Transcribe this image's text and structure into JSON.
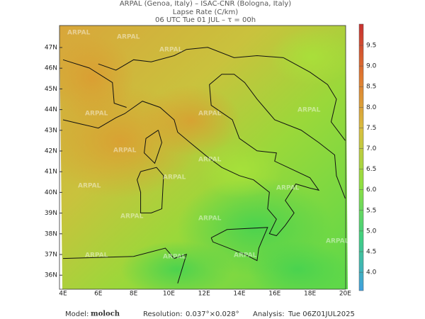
{
  "header": {
    "line1": "ARPAL (Genoa, Italy)  –  ISAC-CNR (Bologna, Italy)",
    "line2": "Lapse Rate (C/km)",
    "line3": "06 UTC Tue 01 JUL  –  τ = 00h"
  },
  "map": {
    "lat_labels": [
      "47N",
      "46N",
      "45N",
      "44N",
      "43N",
      "42N",
      "41N",
      "40N",
      "39N",
      "38N",
      "37N",
      "36N"
    ],
    "lon_labels": [
      "4E",
      "6E",
      "8E",
      "10E",
      "12E",
      "14E",
      "16E",
      "18E",
      "20E"
    ],
    "watermark": "ARPAL"
  },
  "colorbar": {
    "labels": [
      "9.5",
      "9.0",
      "8.5",
      "8.0",
      "7.5",
      "7.0",
      "6.5",
      "6.0",
      "5.5",
      "5.0",
      "4.5",
      "4.0"
    ]
  },
  "footer": {
    "model_label": "Model:",
    "model": "moloch",
    "resolution_label": "Resolution:",
    "resolution": "0.037°×0.028°",
    "analysis_label": "Analysis:",
    "analysis": "Tue 06Z01JUL2025"
  }
}
